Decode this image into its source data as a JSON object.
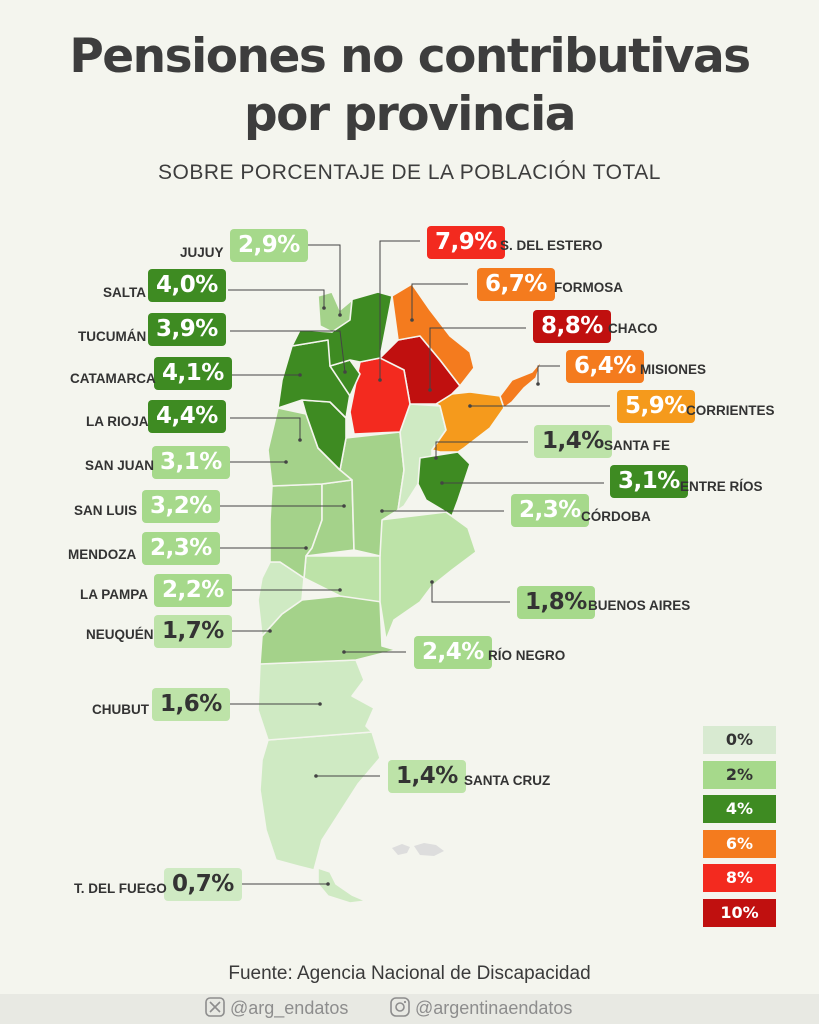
{
  "title_line1": "Pensiones no contributivas",
  "title_line2": "por provincia",
  "subtitle": "SOBRE PORCENTAJE DE LA POBLACIÓN TOTAL",
  "source": "Fuente: Agencia Nacional de Discapacidad",
  "social": {
    "x": "@arg_endatos",
    "instagram": "@argentinaendatos",
    "x_icon": "x-logo-icon",
    "instagram_icon": "instagram-icon"
  },
  "colors": {
    "c0": "#d8ead1",
    "c2": "#a6d98b",
    "c4": "#3e8b22",
    "c6": "#f47b1e",
    "c8": "#f32a1f",
    "c10": "#c0100f",
    "light_fill": "#bde3a8",
    "lightest_fill": "#cfeac3",
    "mid_fill": "#a4d28a",
    "corrientes": "#f59a1c",
    "line": "#444444"
  },
  "provinces": [
    {
      "name": "JUJUY",
      "value": "2,9%",
      "color": "#a6d98b",
      "text_color": "#ffffff"
    },
    {
      "name": "SALTA",
      "value": "4,0%",
      "color": "#3e8b22",
      "text_color": "#ffffff"
    },
    {
      "name": "TUCUMÁN",
      "value": "3,9%",
      "color": "#3e8b22",
      "text_color": "#ffffff"
    },
    {
      "name": "CATAMARCA",
      "value": "4,1%",
      "color": "#3e8b22",
      "text_color": "#ffffff"
    },
    {
      "name": "LA RIOJA",
      "value": "4,4%",
      "color": "#3e8b22",
      "text_color": "#ffffff"
    },
    {
      "name": "SAN JUAN",
      "value": "3,1%",
      "color": "#a6d98b",
      "text_color": "#ffffff"
    },
    {
      "name": "SAN LUIS",
      "value": "3,2%",
      "color": "#a6d98b",
      "text_color": "#ffffff"
    },
    {
      "name": "MENDOZA",
      "value": "2,3%",
      "color": "#a6d98b",
      "text_color": "#ffffff"
    },
    {
      "name": "LA PAMPA",
      "value": "2,2%",
      "color": "#a6d98b",
      "text_color": "#ffffff"
    },
    {
      "name": "NEUQUÉN",
      "value": "1,7%",
      "color": "#bde3a8",
      "text_color": "#333333"
    },
    {
      "name": "CHUBUT",
      "value": "1,6%",
      "color": "#bde3a8",
      "text_color": "#333333"
    },
    {
      "name": "T. DEL FUEGO",
      "value": "0,7%",
      "color": "#cfeac3",
      "text_color": "#333333"
    },
    {
      "name": "S. DEL ESTERO",
      "value": "7,9%",
      "color": "#f32a1f",
      "text_color": "#ffffff"
    },
    {
      "name": "FORMOSA",
      "value": "6,7%",
      "color": "#f47b1e",
      "text_color": "#ffffff"
    },
    {
      "name": "CHACO",
      "value": "8,8%",
      "color": "#c0100f",
      "text_color": "#ffffff"
    },
    {
      "name": "MISIONES",
      "value": "6,4%",
      "color": "#f47b1e",
      "text_color": "#ffffff"
    },
    {
      "name": "CORRIENTES",
      "value": "5,9%",
      "color": "#f59a1c",
      "text_color": "#ffffff"
    },
    {
      "name": "SANTA FE",
      "value": "1,4%",
      "color": "#bde3a8",
      "text_color": "#333333"
    },
    {
      "name": "ENTRE RÍOS",
      "value": "3,1%",
      "color": "#3e8b22",
      "text_color": "#ffffff"
    },
    {
      "name": "CÓRDOBA",
      "value": "2,3%",
      "color": "#a6d98b",
      "text_color": "#ffffff"
    },
    {
      "name": "BUENOS AIRES",
      "value": "1,8%",
      "color": "#a6d98b",
      "text_color": "#333333"
    },
    {
      "name": "RÍO NEGRO",
      "value": "2,4%",
      "color": "#a6d98b",
      "text_color": "#ffffff"
    },
    {
      "name": "SANTA CRUZ",
      "value": "1,4%",
      "color": "#bde3a8",
      "text_color": "#333333"
    }
  ],
  "legend": [
    {
      "label": "0%",
      "color": "#d8ead1",
      "text_color": "#333333"
    },
    {
      "label": "2%",
      "color": "#a6d98b",
      "text_color": "#333333"
    },
    {
      "label": "4%",
      "color": "#3e8b22",
      "text_color": "#ffffff"
    },
    {
      "label": "6%",
      "color": "#f47b1e",
      "text_color": "#ffffff"
    },
    {
      "label": "8%",
      "color": "#f32a1f",
      "text_color": "#ffffff"
    },
    {
      "label": "10%",
      "color": "#c0100f",
      "text_color": "#ffffff"
    }
  ]
}
